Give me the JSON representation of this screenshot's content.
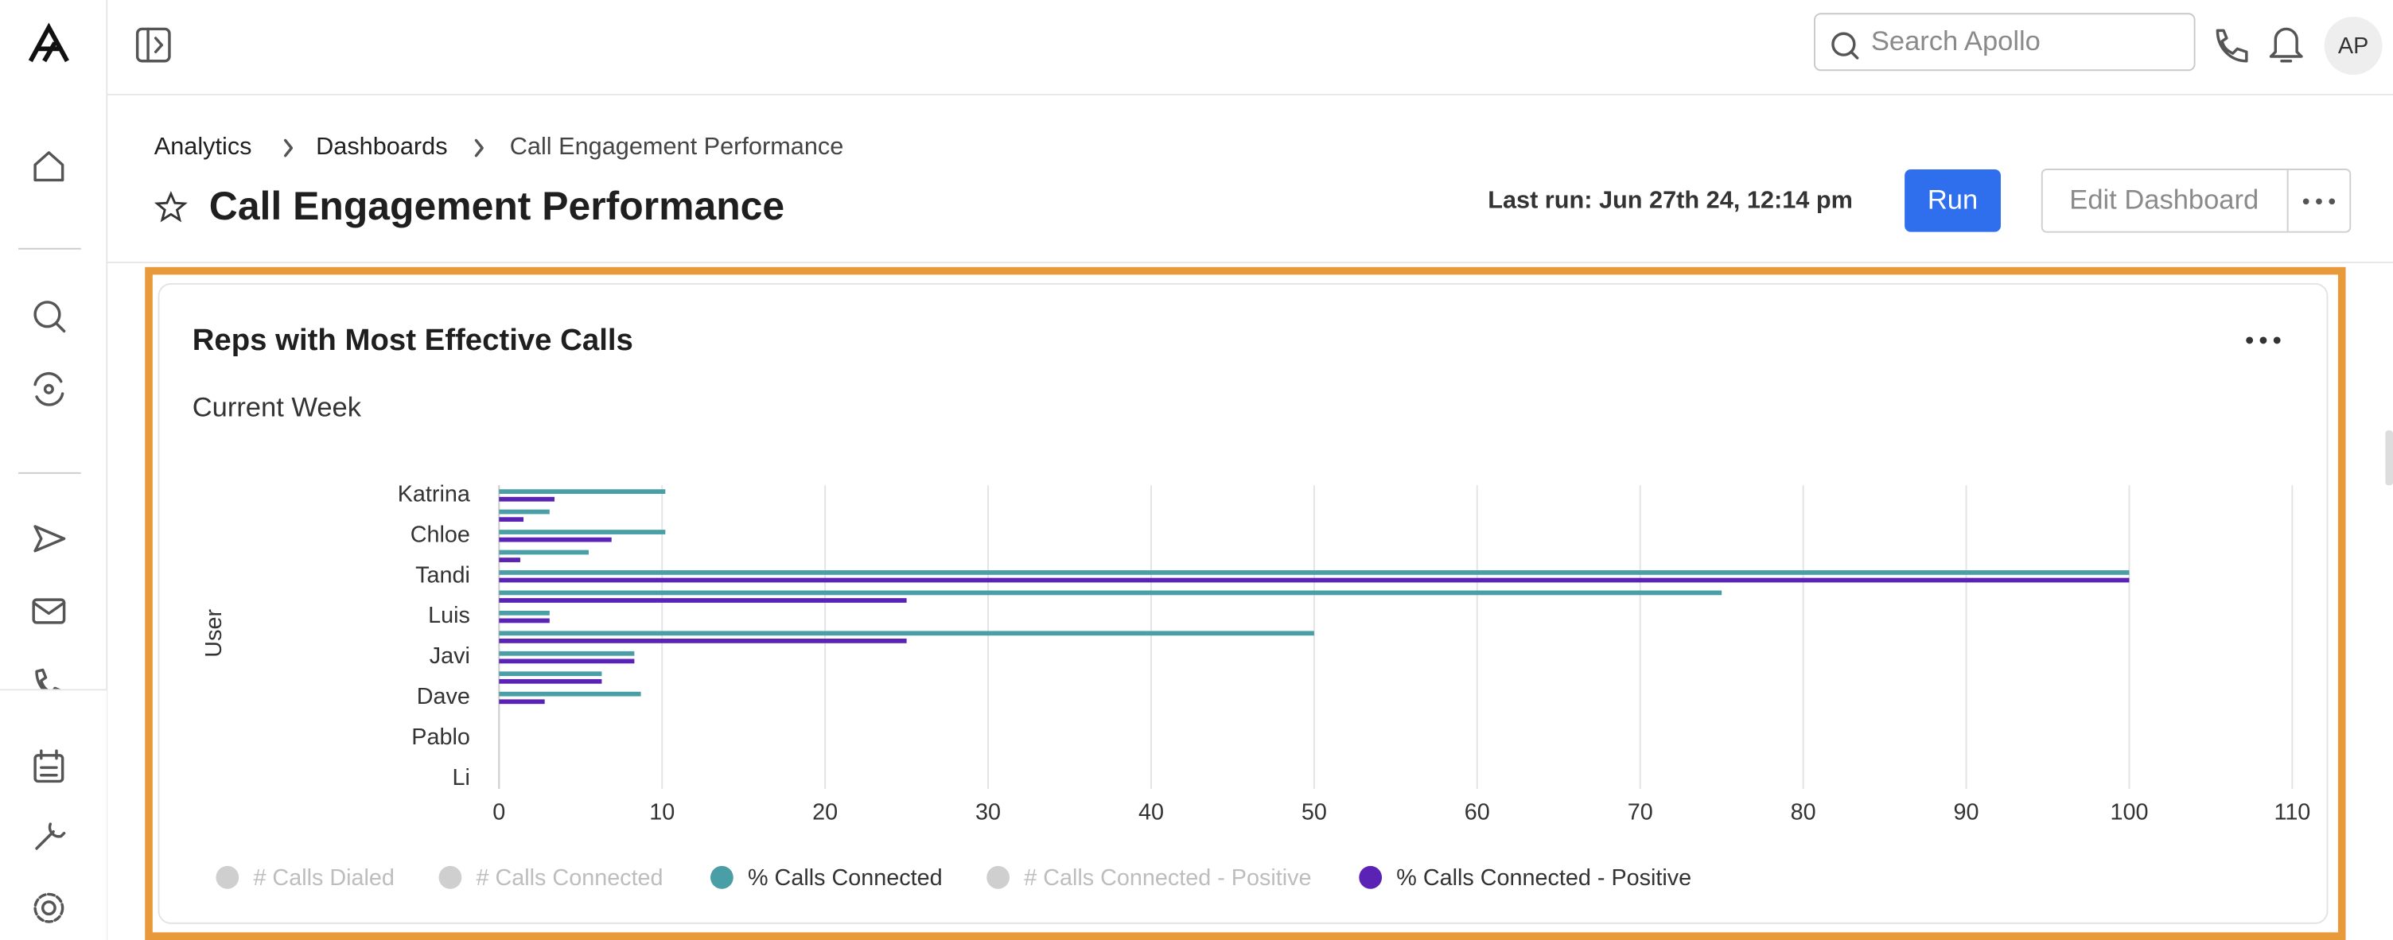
{
  "header": {
    "search_placeholder": "Search Apollo",
    "avatar": "AP"
  },
  "breadcrumbs": [
    "Analytics",
    "Dashboards",
    "Call Engagement Performance"
  ],
  "title": "Call Engagement Performance",
  "last_run": "Last run: Jun 27th 24, 12:14 pm",
  "buttons": {
    "run": "Run",
    "edit": "Edit Dashboard"
  },
  "chart_data": {
    "type": "hbar",
    "title": "Reps with Most Effective Calls",
    "subtitle": "Current Week",
    "ylabel": "User",
    "categories": [
      "Katrina",
      null,
      "Chloe",
      null,
      "Tandi",
      null,
      "Luis",
      null,
      "Javi",
      null,
      "Dave",
      null,
      "Pablo",
      null,
      "Li"
    ],
    "series": [
      {
        "name": "# Calls Dialed",
        "color": "#cfcfcf",
        "visible": false
      },
      {
        "name": "# Calls Connected",
        "color": "#cfcfcf",
        "visible": false
      },
      {
        "name": "% Calls Connected",
        "color": "#4a9ea6",
        "visible": true,
        "values": [
          10.2,
          3.1,
          10.2,
          5.5,
          100,
          75,
          3.1,
          50,
          8.3,
          6.3,
          8.7,
          0,
          0,
          0,
          0
        ]
      },
      {
        "name": "# Calls Connected - Positive",
        "color": "#cfcfcf",
        "visible": false
      },
      {
        "name": "% Calls Connected - Positive",
        "color": "#5a22b5",
        "visible": true,
        "values": [
          3.4,
          1.5,
          6.9,
          1.3,
          100,
          25,
          3.1,
          25,
          8.3,
          6.3,
          2.8,
          0,
          0,
          0,
          0
        ]
      }
    ],
    "xlim": [
      0,
      110
    ],
    "xticks": [
      0,
      10,
      20,
      30,
      40,
      50,
      60,
      70,
      80,
      90,
      100,
      110
    ],
    "grid": true
  }
}
